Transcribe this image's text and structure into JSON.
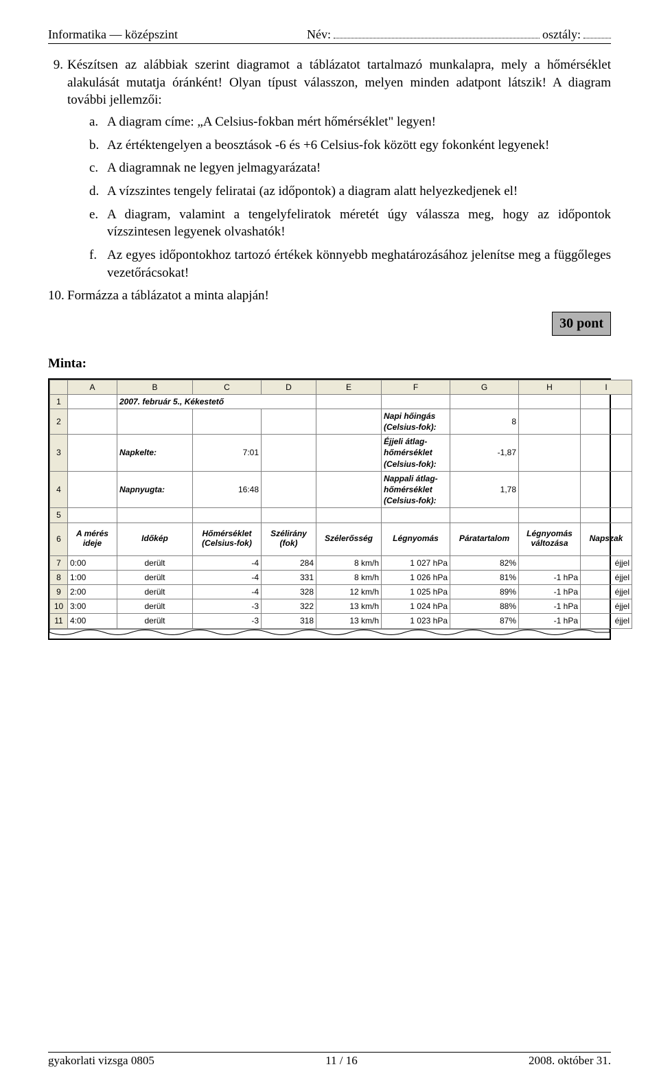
{
  "header": {
    "left": "Informatika — középszint",
    "nev_label": "Név:",
    "osztaly_label": " osztály:"
  },
  "task9": {
    "num": "9.",
    "text": "Készítsen az alábbiak szerint diagramot a táblázatot tartalmazó munkalapra, mely a hőmérséklet alakulását mutatja óránként! Olyan típust válasszon, melyen minden adatpont látszik! A diagram további jellemzői:",
    "subs": [
      {
        "l": "a.",
        "t": "A diagram címe: „A Celsius-fokban mért hőmérséklet\" legyen!"
      },
      {
        "l": "b.",
        "t": "Az értéktengelyen a beosztások -6 és +6 Celsius-fok között egy fokonként legyenek!"
      },
      {
        "l": "c.",
        "t": "A diagramnak ne legyen jelmagyarázata!"
      },
      {
        "l": "d.",
        "t": "A vízszintes tengely feliratai (az időpontok) a diagram alatt helyezkedjenek el!"
      },
      {
        "l": "e.",
        "t": "A diagram, valamint a tengelyfeliratok méretét úgy válassza meg, hogy az időpontok vízszintesen legyenek olvashatók!"
      },
      {
        "l": "f.",
        "t": "Az egyes időpontokhoz tartozó értékek könnyebb meghatározásához jelenítse meg a függőleges vezetőrácsokat!"
      }
    ]
  },
  "task10": {
    "num": "10.",
    "text": "Formázza a táblázatot a minta alapján!"
  },
  "points": "30 pont",
  "minta": "Minta:",
  "ss": {
    "cols": [
      "A",
      "B",
      "C",
      "D",
      "E",
      "F",
      "G",
      "H",
      "I"
    ],
    "rownums": [
      "1",
      "2",
      "3",
      "4",
      "5",
      "6",
      "7",
      "8",
      "9",
      "10",
      "11"
    ],
    "title": "2007. február 5., Kékestető",
    "napkelte_l": "Napkelte:",
    "napkelte_v": "7:01",
    "napnyugta_l": "Napnyugta:",
    "napnyugta_v": "16:48",
    "hoingas_l": "Napi hőingás (Celsius-fok):",
    "hoingas_v": "8",
    "ejjeli_l": "Éjjeli átlag-hőmérséklet (Celsius-fok):",
    "ejjeli_v": "-1,87",
    "nappali_l": "Nappali átlag-hőmérséklet (Celsius-fok):",
    "nappali_v": "1,78",
    "hdr": [
      "A mérés ideje",
      "Időkép",
      "Hőmérséklet (Celsius-fok)",
      "Szélirány (fok)",
      "Szélerősség",
      "Légnyomás",
      "Páratartalom",
      "Légnyomás változása",
      "Napszak"
    ],
    "rows": [
      [
        "0:00",
        "derült",
        "-4",
        "284",
        "8 km/h",
        "1 027 hPa",
        "82%",
        "",
        "éjjel"
      ],
      [
        "1:00",
        "derült",
        "-4",
        "331",
        "8 km/h",
        "1 026 hPa",
        "81%",
        "-1 hPa",
        "éjjel"
      ],
      [
        "2:00",
        "derült",
        "-4",
        "328",
        "12 km/h",
        "1 025 hPa",
        "89%",
        "-1 hPa",
        "éjjel"
      ],
      [
        "3:00",
        "derült",
        "-3",
        "322",
        "13 km/h",
        "1 024 hPa",
        "88%",
        "-1 hPa",
        "éjjel"
      ],
      [
        "4:00",
        "derült",
        "-3",
        "318",
        "13 km/h",
        "1 023 hPa",
        "87%",
        "-1 hPa",
        "éjjel"
      ]
    ]
  },
  "footer": {
    "left": "gyakorlati vizsga 0805",
    "center": "11 / 16",
    "right": "2008. október 31."
  }
}
